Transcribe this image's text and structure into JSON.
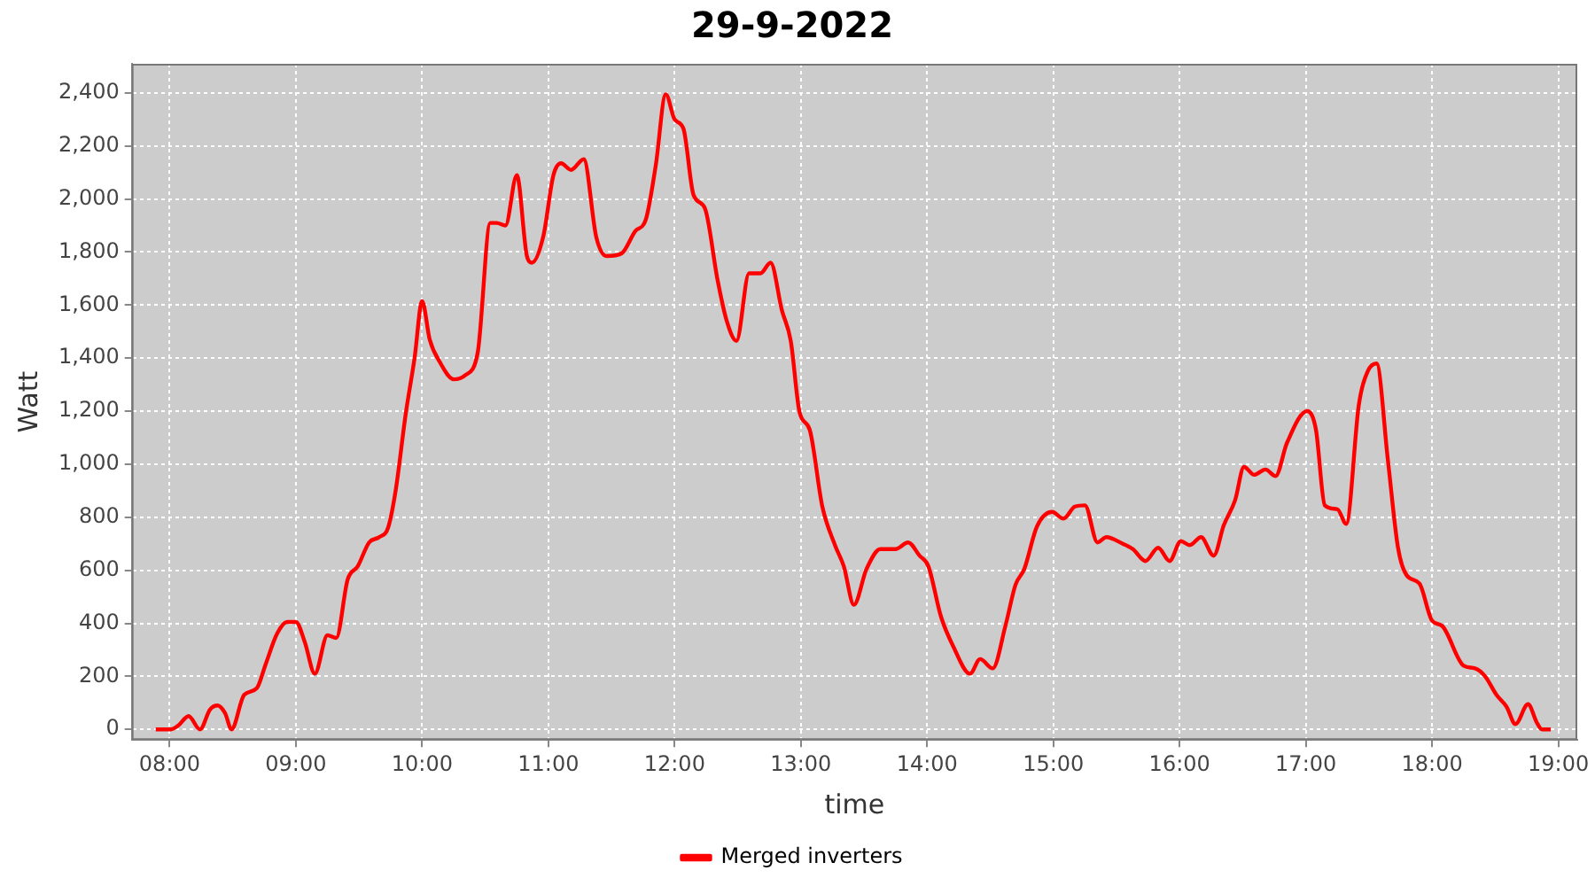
{
  "chart_data": {
    "type": "line",
    "title": "29-9-2022",
    "xlabel": "time",
    "ylabel": "Watt",
    "xlim": [
      7.7,
      19.15
    ],
    "xticks": [
      {
        "value": 8,
        "label": "08:00"
      },
      {
        "value": 9,
        "label": "09:00"
      },
      {
        "value": 10,
        "label": "10:00"
      },
      {
        "value": 11,
        "label": "11:00"
      },
      {
        "value": 12,
        "label": "12:00"
      },
      {
        "value": 13,
        "label": "13:00"
      },
      {
        "value": 14,
        "label": "14:00"
      },
      {
        "value": 15,
        "label": "15:00"
      },
      {
        "value": 16,
        "label": "16:00"
      },
      {
        "value": 17,
        "label": "17:00"
      },
      {
        "value": 18,
        "label": "18:00"
      },
      {
        "value": 19,
        "label": "19:00"
      }
    ],
    "ylim": [
      -40,
      2510
    ],
    "yticks": [
      0,
      200,
      400,
      600,
      800,
      {
        "value": 1000,
        "label": "1,000"
      },
      {
        "value": 1200,
        "label": "1,200"
      },
      {
        "value": 1400,
        "label": "1,400"
      },
      {
        "value": 1600,
        "label": "1,600"
      },
      {
        "value": 1800,
        "label": "1,800"
      },
      {
        "value": 2000,
        "label": "2,000"
      },
      {
        "value": 2200,
        "label": "2,200"
      },
      {
        "value": 2400,
        "label": "2,400"
      }
    ],
    "grid": true,
    "legend": "bottom",
    "marker": "none",
    "line_style": "solid",
    "series": [
      {
        "name": "Merged inverters",
        "color": "#ff0000",
        "x": [
          7.89,
          8.01,
          8.07,
          8.15,
          8.24,
          8.32,
          8.38,
          8.44,
          8.49,
          8.59,
          8.69,
          8.76,
          8.85,
          8.93,
          9.0,
          9.07,
          9.15,
          9.25,
          9.32,
          9.41,
          9.49,
          9.58,
          9.66,
          9.73,
          9.79,
          9.87,
          9.94,
          10.0,
          10.06,
          10.14,
          10.25,
          10.34,
          10.44,
          10.54,
          10.59,
          10.66,
          10.75,
          10.83,
          10.87,
          10.96,
          11.04,
          11.1,
          11.18,
          11.28,
          11.38,
          11.46,
          11.58,
          11.69,
          11.77,
          11.85,
          11.93,
          12.0,
          12.07,
          12.15,
          12.24,
          12.34,
          12.41,
          12.49,
          12.59,
          12.68,
          12.76,
          12.85,
          12.92,
          12.99,
          13.07,
          13.17,
          13.27,
          13.34,
          13.42,
          13.52,
          13.63,
          13.75,
          13.85,
          13.94,
          14.01,
          14.11,
          14.21,
          14.34,
          14.42,
          14.52,
          14.62,
          14.7,
          14.77,
          14.87,
          14.99,
          15.08,
          15.17,
          15.25,
          15.35,
          15.42,
          15.55,
          15.63,
          15.73,
          15.83,
          15.92,
          16.01,
          16.08,
          16.17,
          16.27,
          16.35,
          16.44,
          16.51,
          16.59,
          16.68,
          16.76,
          16.85,
          17.01,
          17.08,
          17.15,
          17.25,
          17.32,
          17.42,
          17.49,
          17.56,
          17.65,
          17.73,
          17.8,
          17.9,
          18.0,
          18.08,
          18.25,
          18.34,
          18.42,
          18.51,
          18.59,
          18.66,
          18.76,
          18.83,
          18.87,
          18.94
        ],
        "values": [
          0,
          0,
          15,
          50,
          0,
          75,
          90,
          60,
          0,
          130,
          155,
          245,
          360,
          405,
          405,
          330,
          210,
          355,
          345,
          565,
          615,
          705,
          725,
          760,
          900,
          1190,
          1400,
          1615,
          1470,
          1385,
          1320,
          1335,
          1420,
          1910,
          1910,
          1900,
          2090,
          1785,
          1760,
          1860,
          2090,
          2135,
          2110,
          2150,
          1855,
          1785,
          1795,
          1880,
          1920,
          2125,
          2395,
          2300,
          2265,
          2015,
          1965,
          1695,
          1545,
          1465,
          1720,
          1720,
          1760,
          1580,
          1465,
          1195,
          1130,
          840,
          695,
          615,
          470,
          605,
          680,
          680,
          705,
          655,
          615,
          425,
          310,
          210,
          265,
          230,
          390,
          545,
          605,
          765,
          820,
          795,
          840,
          845,
          705,
          725,
          700,
          680,
          635,
          685,
          635,
          710,
          695,
          725,
          655,
          770,
          865,
          990,
          960,
          980,
          955,
          1080,
          1200,
          1130,
          845,
          830,
          775,
          1225,
          1350,
          1380,
          1015,
          685,
          580,
          550,
          410,
          390,
          240,
          230,
          200,
          130,
          85,
          20,
          95,
          25,
          0,
          0
        ]
      }
    ]
  }
}
